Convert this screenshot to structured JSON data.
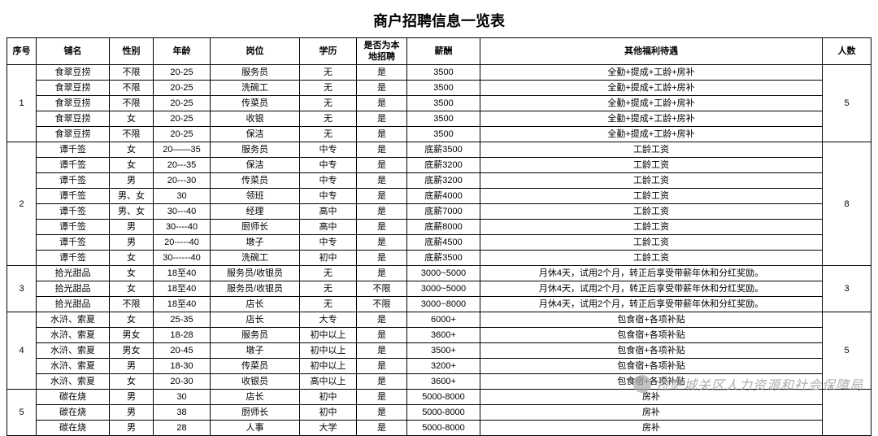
{
  "title": "商户招聘信息一览表",
  "columns": [
    "序号",
    "铺名",
    "性别",
    "年龄",
    "岗位",
    "学历",
    "是否为本地招聘",
    "薪酬",
    "其他福利待遇",
    "人数"
  ],
  "watermark": "拉萨城关区人力资源和社会保障局",
  "groups": [
    {
      "seq": "1",
      "count": "5",
      "rows": [
        [
          "食翠豆捞",
          "不限",
          "20-25",
          "服务员",
          "无",
          "是",
          "3500",
          "全勤+提成+工龄+房补"
        ],
        [
          "食翠豆捞",
          "不限",
          "20-25",
          "洗碗工",
          "无",
          "是",
          "3500",
          "全勤+提成+工龄+房补"
        ],
        [
          "食翠豆捞",
          "不限",
          "20-25",
          "传菜员",
          "无",
          "是",
          "3500",
          "全勤+提成+工龄+房补"
        ],
        [
          "食翠豆捞",
          "女",
          "20-25",
          "收银",
          "无",
          "是",
          "3500",
          "全勤+提成+工龄+房补"
        ],
        [
          "食翠豆捞",
          "不限",
          "20-25",
          "保洁",
          "无",
          "是",
          "3500",
          "全勤+提成+工龄+房补"
        ]
      ]
    },
    {
      "seq": "2",
      "count": "8",
      "rows": [
        [
          "谭千签",
          "女",
          "20——35",
          "服务员",
          "中专",
          "是",
          "底薪3500",
          "工龄工资"
        ],
        [
          "谭千签",
          "女",
          "20---35",
          "保洁",
          "中专",
          "是",
          "底薪3200",
          "工龄工资"
        ],
        [
          "谭千签",
          "男",
          "20---30",
          "传菜员",
          "中专",
          "是",
          "底薪3200",
          "工龄工资"
        ],
        [
          "谭千签",
          "男、女",
          "30",
          "领班",
          "中专",
          "是",
          "底薪4000",
          "工龄工资"
        ],
        [
          "谭千签",
          "男、女",
          "30---40",
          "经理",
          "高中",
          "是",
          "底薪7000",
          "工龄工资"
        ],
        [
          "谭千签",
          "男",
          "30----40",
          "厨师长",
          "高中",
          "是",
          "底薪8000",
          "工龄工资"
        ],
        [
          "谭千签",
          "男",
          "20-----40",
          "墩子",
          "中专",
          "是",
          "底薪4500",
          "工龄工资"
        ],
        [
          "谭千签",
          "女",
          "30------40",
          "洗碗工",
          "初中",
          "是",
          "底薪3500",
          "工龄工资"
        ]
      ]
    },
    {
      "seq": "3",
      "count": "3",
      "rows": [
        [
          "拾光甜品",
          "女",
          "18至40",
          "服务员/收银员",
          "无",
          "是",
          "3000~5000",
          "月休4天，试用2个月，转正后享受带薪年休和分红奖励。"
        ],
        [
          "拾光甜品",
          "女",
          "18至40",
          "服务员/收银员",
          "无",
          "不限",
          "3000~5000",
          "月休4天，试用2个月，转正后享受带薪年休和分红奖励。"
        ],
        [
          "拾光甜品",
          "不限",
          "18至40",
          "店长",
          "无",
          "不限",
          "3000~8000",
          "月休4天，试用2个月，转正后享受带薪年休和分红奖励。"
        ]
      ]
    },
    {
      "seq": "4",
      "count": "5",
      "rows": [
        [
          "水浒、索夏",
          "女",
          "25-35",
          "店长",
          "大专",
          "是",
          "6000+",
          "包食宿+各项补贴"
        ],
        [
          "水浒、索夏",
          "男女",
          "18-28",
          "服务员",
          "初中以上",
          "是",
          "3600+",
          "包食宿+各项补贴"
        ],
        [
          "水浒、索夏",
          "男女",
          "20-45",
          "墩子",
          "初中以上",
          "是",
          "3500+",
          "包食宿+各项补贴"
        ],
        [
          "水浒、索夏",
          "男",
          "18-30",
          "传菜员",
          "初中以上",
          "是",
          "3200+",
          "包食宿+各项补贴"
        ],
        [
          "水浒、索夏",
          "女",
          "20-30",
          "收银员",
          "高中以上",
          "是",
          "3600+",
          "包食宿+各项补贴"
        ]
      ]
    },
    {
      "seq": "5",
      "count": "",
      "rows": [
        [
          "碳在烧",
          "男",
          "30",
          "店长",
          "初中",
          "是",
          "5000-8000",
          "房补"
        ],
        [
          "碳在烧",
          "男",
          "38",
          "厨师长",
          "初中",
          "是",
          "5000-8000",
          "房补"
        ],
        [
          "碳在烧",
          "男",
          "28",
          "人事",
          "大学",
          "是",
          "5000-8000",
          "房补"
        ]
      ]
    }
  ]
}
